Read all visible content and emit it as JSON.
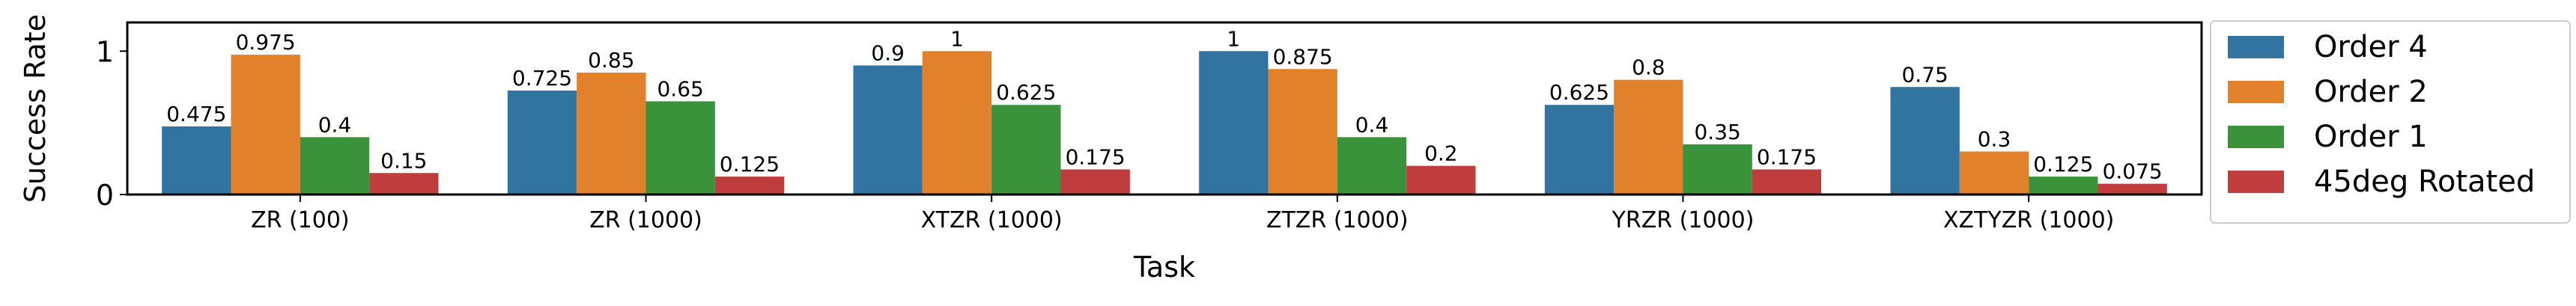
{
  "chart_data": {
    "type": "bar",
    "title": "",
    "xlabel": "Task",
    "ylabel": "Success Rate",
    "ylim": [
      0,
      1.2
    ],
    "yticks": [
      0,
      1
    ],
    "categories": [
      "ZR (100)",
      "ZR (1000)",
      "XTZR (1000)",
      "ZTZR (1000)",
      "YRZR (1000)",
      "XZTYZR (1000)"
    ],
    "series": [
      {
        "name": "Order 4",
        "color": "#3274a1",
        "values": [
          0.475,
          0.725,
          0.9,
          1,
          0.625,
          0.75
        ]
      },
      {
        "name": "Order 2",
        "color": "#e1812c",
        "values": [
          0.975,
          0.85,
          1,
          0.875,
          0.8,
          0.3
        ]
      },
      {
        "name": "Order 1",
        "color": "#3a923a",
        "values": [
          0.4,
          0.65,
          0.625,
          0.4,
          0.35,
          0.125
        ]
      },
      {
        "name": "45deg Rotated",
        "color": "#c03d3e",
        "values": [
          0.15,
          0.125,
          0.175,
          0.2,
          0.175,
          0.075
        ]
      }
    ],
    "legend_position": "right",
    "grid": false
  }
}
